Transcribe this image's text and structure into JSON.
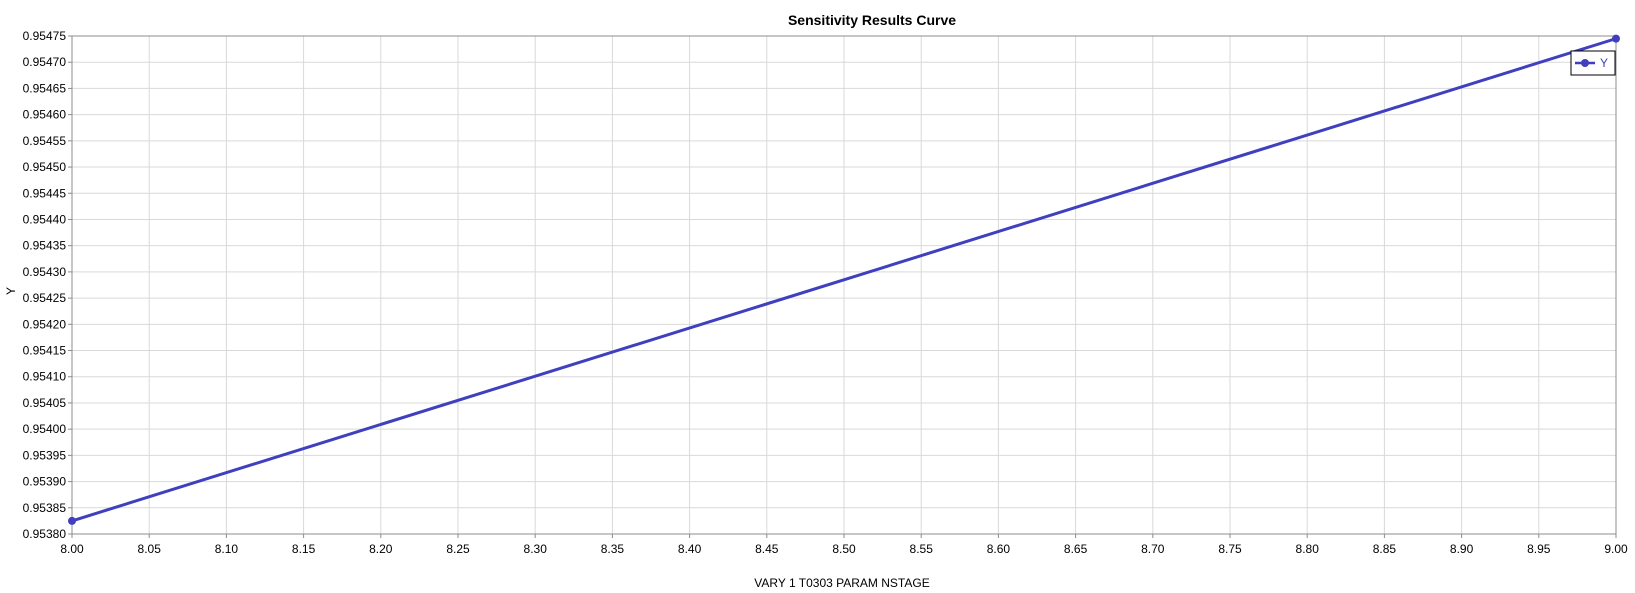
{
  "chart_data": {
    "type": "line",
    "title": "Sensitivity Results Curve",
    "xlabel": "VARY   1 T0303 PARAM NSTAGE",
    "ylabel": "Y",
    "xlim": [
      8.0,
      9.0
    ],
    "ylim": [
      0.9538,
      0.95475
    ],
    "x_ticks": [
      "8.00",
      "8.05",
      "8.10",
      "8.15",
      "8.20",
      "8.25",
      "8.30",
      "8.35",
      "8.40",
      "8.45",
      "8.50",
      "8.55",
      "8.60",
      "8.65",
      "8.70",
      "8.75",
      "8.80",
      "8.85",
      "8.90",
      "8.95",
      "9.00"
    ],
    "y_ticks": [
      "0.95380",
      "0.95385",
      "0.95390",
      "0.95395",
      "0.95400",
      "0.95405",
      "0.95410",
      "0.95415",
      "0.95420",
      "0.95425",
      "0.95430",
      "0.95435",
      "0.95440",
      "0.95445",
      "0.95450",
      "0.95455",
      "0.95460",
      "0.95465",
      "0.95470",
      "0.95475"
    ],
    "grid": true,
    "legend_position": "top-right",
    "series": [
      {
        "name": "Y",
        "color": "#3f3fbf",
        "marker": "circle",
        "x": [
          8.0,
          9.0
        ],
        "y": [
          0.953825,
          0.954745
        ]
      }
    ]
  }
}
